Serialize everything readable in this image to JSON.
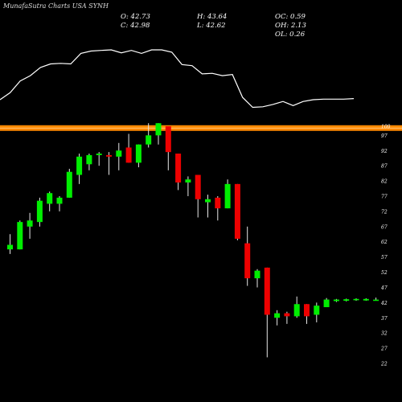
{
  "header": {
    "title": "MunafaSutra Charts USA SYNH"
  },
  "ohlc": {
    "open": "O: 42.73",
    "high": "H: 43.64",
    "oc": "OC: 0.59",
    "close": "C: 42.98",
    "low": "L: 42.62",
    "oh": "OH: 2.13",
    "ol": "OL: 0.26"
  },
  "colors": {
    "background": "#000000",
    "up": "#00ee00",
    "down": "#ee0000",
    "line": "#ffffff",
    "level_band": "#ff8800",
    "text": "#ffffff"
  },
  "chart_data": {
    "type": "candlestick",
    "ylim": [
      22,
      100
    ],
    "y_ticks": [
      22,
      27,
      32,
      37,
      42,
      47,
      52,
      57,
      62,
      67,
      72,
      77,
      82,
      87,
      92,
      97,
      100
    ],
    "y_tick_labels": [
      "22",
      "27",
      "32",
      "37",
      "42",
      "47",
      "52",
      "57",
      "62",
      "67",
      "72",
      "77",
      "82",
      "87",
      "92",
      "97",
      "100"
    ],
    "y_axis_position": "right",
    "grid": false,
    "level_line": 99.4,
    "candles": [
      {
        "o": 59.5,
        "h": 64.5,
        "l": 58.0,
        "c": 61.0
      },
      {
        "o": 59.5,
        "h": 69.0,
        "l": 59.5,
        "c": 68.5
      },
      {
        "o": 67.0,
        "h": 71.5,
        "l": 63.0,
        "c": 69.0
      },
      {
        "o": 68.5,
        "h": 76.5,
        "l": 67.0,
        "c": 75.5
      },
      {
        "o": 74.5,
        "h": 78.5,
        "l": 72.0,
        "c": 78.0
      },
      {
        "o": 74.5,
        "h": 77.0,
        "l": 72.0,
        "c": 76.5
      },
      {
        "o": 76.5,
        "h": 86.0,
        "l": 76.5,
        "c": 85.0
      },
      {
        "o": 84.0,
        "h": 91.0,
        "l": 81.0,
        "c": 90.0
      },
      {
        "o": 87.5,
        "h": 91.0,
        "l": 85.5,
        "c": 90.5
      },
      {
        "o": 90.5,
        "h": 91.5,
        "l": 87.0,
        "c": 91.0
      },
      {
        "o": 90.5,
        "h": 91.5,
        "l": 84.0,
        "c": 90.0
      },
      {
        "o": 90.0,
        "h": 94.5,
        "l": 85.5,
        "c": 92.0
      },
      {
        "o": 93.0,
        "h": 97.5,
        "l": 88.0,
        "c": 88.0
      },
      {
        "o": 88.0,
        "h": 94.0,
        "l": 86.5,
        "c": 94.0
      },
      {
        "o": 94.0,
        "h": 101.0,
        "l": 93.0,
        "c": 97.0
      },
      {
        "o": 97.0,
        "h": 101.0,
        "l": 94.0,
        "c": 101.0
      },
      {
        "o": 100.0,
        "h": 100.0,
        "l": 85.5,
        "c": 91.5
      },
      {
        "o": 91.0,
        "h": 91.0,
        "l": 79.0,
        "c": 81.5
      },
      {
        "o": 81.5,
        "h": 83.5,
        "l": 77.0,
        "c": 82.5
      },
      {
        "o": 84.0,
        "h": 84.0,
        "l": 70.0,
        "c": 76.0
      },
      {
        "o": 75.0,
        "h": 77.5,
        "l": 70.0,
        "c": 76.0
      },
      {
        "o": 76.5,
        "h": 77.0,
        "l": 69.0,
        "c": 73.0
      },
      {
        "o": 73.0,
        "h": 82.5,
        "l": 73.0,
        "c": 81.0
      },
      {
        "o": 81.0,
        "h": 81.0,
        "l": 62.5,
        "c": 63.0
      },
      {
        "o": 61.5,
        "h": 67.0,
        "l": 47.5,
        "c": 50.0
      },
      {
        "o": 50.0,
        "h": 53.0,
        "l": 47.0,
        "c": 52.5
      },
      {
        "o": 53.5,
        "h": 53.5,
        "l": 24.0,
        "c": 38.0
      },
      {
        "o": 37.0,
        "h": 39.5,
        "l": 34.5,
        "c": 38.5
      },
      {
        "o": 38.5,
        "h": 39.0,
        "l": 35.0,
        "c": 37.5
      },
      {
        "o": 37.5,
        "h": 44.0,
        "l": 37.0,
        "c": 41.5
      },
      {
        "o": 41.5,
        "h": 41.5,
        "l": 35.0,
        "c": 37.5
      },
      {
        "o": 38.0,
        "h": 42.0,
        "l": 35.5,
        "c": 41.0
      },
      {
        "o": 40.5,
        "h": 43.5,
        "l": 40.5,
        "c": 43.0
      },
      {
        "o": 42.5,
        "h": 43.2,
        "l": 42.2,
        "c": 43.0
      },
      {
        "o": 42.6,
        "h": 43.3,
        "l": 42.4,
        "c": 43.1
      },
      {
        "o": 42.8,
        "h": 43.4,
        "l": 42.6,
        "c": 43.2
      },
      {
        "o": 42.7,
        "h": 43.4,
        "l": 42.6,
        "c": 43.2
      },
      {
        "o": 42.73,
        "h": 43.64,
        "l": 42.62,
        "c": 42.98
      }
    ],
    "indicator_line": {
      "scale": "relative",
      "values": [
        0.15,
        0.27,
        0.47,
        0.56,
        0.7,
        0.76,
        0.77,
        0.76,
        0.94,
        0.98,
        0.99,
        1.0,
        0.95,
        0.99,
        0.94,
        1.0,
        1.0,
        0.96,
        0.75,
        0.73,
        0.59,
        0.6,
        0.56,
        0.58,
        0.19,
        0.02,
        0.03,
        0.07,
        0.12,
        0.05,
        0.12,
        0.15,
        0.16,
        0.16,
        0.16,
        0.17
      ]
    }
  }
}
